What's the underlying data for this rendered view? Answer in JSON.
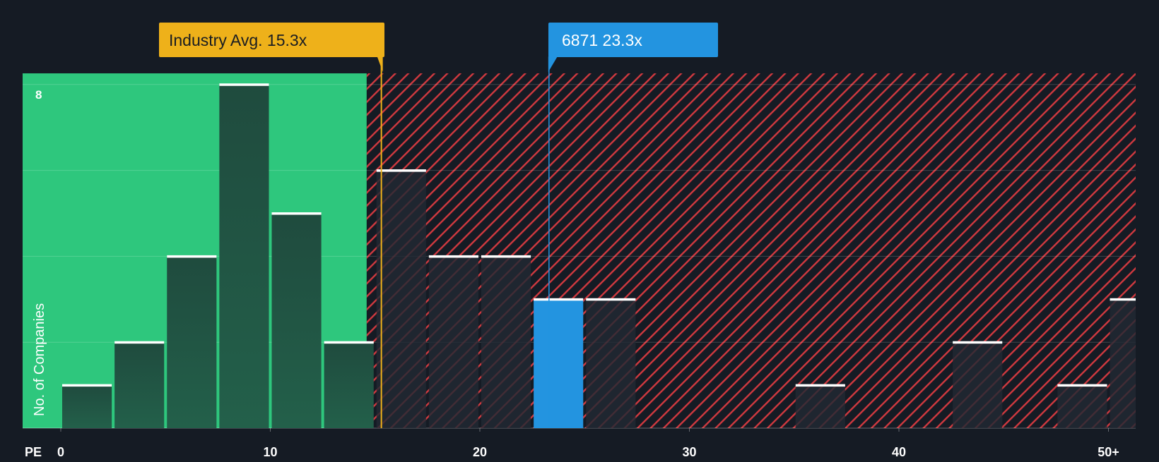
{
  "chart_data": {
    "type": "bar",
    "title": "",
    "xlabel": "PE",
    "ylabel": "No. of Companies",
    "xlim": [
      -3,
      51.5
    ],
    "ylim": [
      0,
      8.3
    ],
    "x_ticks": [
      {
        "value": 0,
        "label": "0"
      },
      {
        "value": 10,
        "label": "10"
      },
      {
        "value": 20,
        "label": "20"
      },
      {
        "value": 30,
        "label": "30"
      },
      {
        "value": 40,
        "label": "40"
      },
      {
        "value": 50,
        "label": "50+"
      }
    ],
    "y_ticks": [
      {
        "value": 8,
        "label": "8"
      }
    ],
    "gridlines_y": [
      2,
      4,
      6,
      8
    ],
    "bin_width": 2.5,
    "bars": [
      {
        "start": 0.0,
        "value": 1,
        "highlight": false
      },
      {
        "start": 2.5,
        "value": 2,
        "highlight": false
      },
      {
        "start": 5.0,
        "value": 4,
        "highlight": false
      },
      {
        "start": 7.5,
        "value": 8,
        "highlight": false
      },
      {
        "start": 10.0,
        "value": 5,
        "highlight": false
      },
      {
        "start": 12.5,
        "value": 2,
        "highlight": false
      },
      {
        "start": 15.0,
        "value": 6,
        "highlight": false
      },
      {
        "start": 17.5,
        "value": 4,
        "highlight": false
      },
      {
        "start": 20.0,
        "value": 4,
        "highlight": false
      },
      {
        "start": 22.5,
        "value": 3,
        "highlight": true
      },
      {
        "start": 25.0,
        "value": 3,
        "highlight": false
      },
      {
        "start": 35.0,
        "value": 1,
        "highlight": false
      },
      {
        "start": 42.5,
        "value": 2,
        "highlight": false
      },
      {
        "start": 47.5,
        "value": 1,
        "highlight": false
      },
      {
        "start": 50.0,
        "value": 3,
        "highlight": false
      }
    ],
    "fair_zone_end": 14.6,
    "industry_avg": {
      "value": 15.3,
      "label": "Industry Avg. 15.3x"
    },
    "company": {
      "value": 23.3,
      "label": "6871 23.3x"
    }
  },
  "colors": {
    "background": "#151b24",
    "fair_zone": "#2ec77d",
    "bar_fair": "#1f4a3d",
    "bar_over": "#222a33",
    "hatch": "#d0393f",
    "highlight": "#2394e0",
    "industry": "#eeb11a",
    "bar_cap": "#ffffff",
    "axis_text": "#ffffff"
  }
}
